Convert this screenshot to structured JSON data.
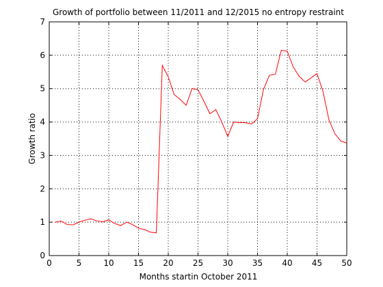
{
  "chart_data": {
    "type": "line",
    "title": "Growth of portfolio between 11/2011 and 12/2015 no entropy restraint",
    "xlabel": "Months startin October 2011",
    "ylabel": "Growth ratio",
    "xlim": [
      0,
      50
    ],
    "ylim": [
      0,
      7
    ],
    "xticks": [
      0,
      5,
      10,
      15,
      20,
      25,
      30,
      35,
      40,
      45,
      50
    ],
    "yticks": [
      0,
      1,
      2,
      3,
      4,
      5,
      6,
      7
    ],
    "grid": true,
    "line_color": "#ff0000",
    "series": [
      {
        "x": [
          1,
          2,
          3,
          4,
          5,
          6,
          7,
          8,
          9,
          10,
          11,
          12,
          13,
          14,
          15,
          16,
          17,
          18,
          19,
          20,
          21,
          22,
          23,
          24,
          25,
          26,
          27,
          28,
          29,
          30,
          31,
          32,
          33,
          34,
          35,
          36,
          37,
          38,
          39,
          40,
          41,
          42,
          43,
          44,
          45,
          46,
          47,
          48,
          49,
          50
        ],
        "values": [
          1.0,
          1.03,
          0.93,
          0.92,
          1.0,
          1.06,
          1.1,
          1.04,
          1.01,
          1.07,
          0.96,
          0.9,
          1.0,
          0.93,
          0.82,
          0.78,
          0.7,
          0.68,
          5.7,
          5.35,
          4.82,
          4.68,
          4.5,
          5.0,
          4.97,
          4.62,
          4.25,
          4.37,
          4.0,
          3.57,
          4.0,
          3.98,
          3.98,
          3.94,
          4.1,
          4.97,
          5.4,
          5.43,
          6.15,
          6.12,
          5.65,
          5.37,
          5.2,
          5.32,
          5.45,
          4.92,
          4.07,
          3.65,
          3.43,
          3.37
        ]
      }
    ]
  }
}
